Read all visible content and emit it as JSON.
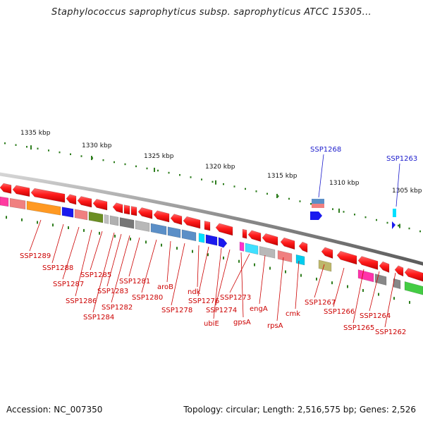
{
  "title": "Staphylococcus saprophyticus subsp. saprophyticus ATCC 15305...",
  "footer": {
    "accession": "Accession: NC_007350",
    "summary": "Topology: circular; Length: 2,516,575 bp; Genes: 2,526"
  },
  "scale_labels": [
    "1335 kbp",
    "1330 kbp",
    "1325 kbp",
    "1320 kbp",
    "1315 kbp",
    "1310 kbp",
    "1305 kbp"
  ],
  "top_gene_labels": [
    "SSP1268",
    "SSP1263"
  ],
  "bottom_gene_labels": [
    "SSP1289",
    "SSP1288",
    "SSP1287",
    "SSP1286",
    "SSP1285",
    "SSP1284",
    "SSP1283",
    "SSP1282",
    "SSP1281",
    "SSP1280",
    "aroB",
    "SSP1278",
    "ndk",
    "SSP1276",
    "ubiE",
    "SSP1274",
    "gpsA",
    "SSP1273",
    "engA",
    "rpsA",
    "cmk",
    "SSP1267",
    "SSP1266",
    "SSP1265",
    "SSP1264",
    "SSP1262"
  ],
  "colors": {
    "label_red": "#cc0000",
    "label_blue": "#1a1acc",
    "tick_green": "#2e7d1e",
    "backbone": "#8a8a8a"
  }
}
